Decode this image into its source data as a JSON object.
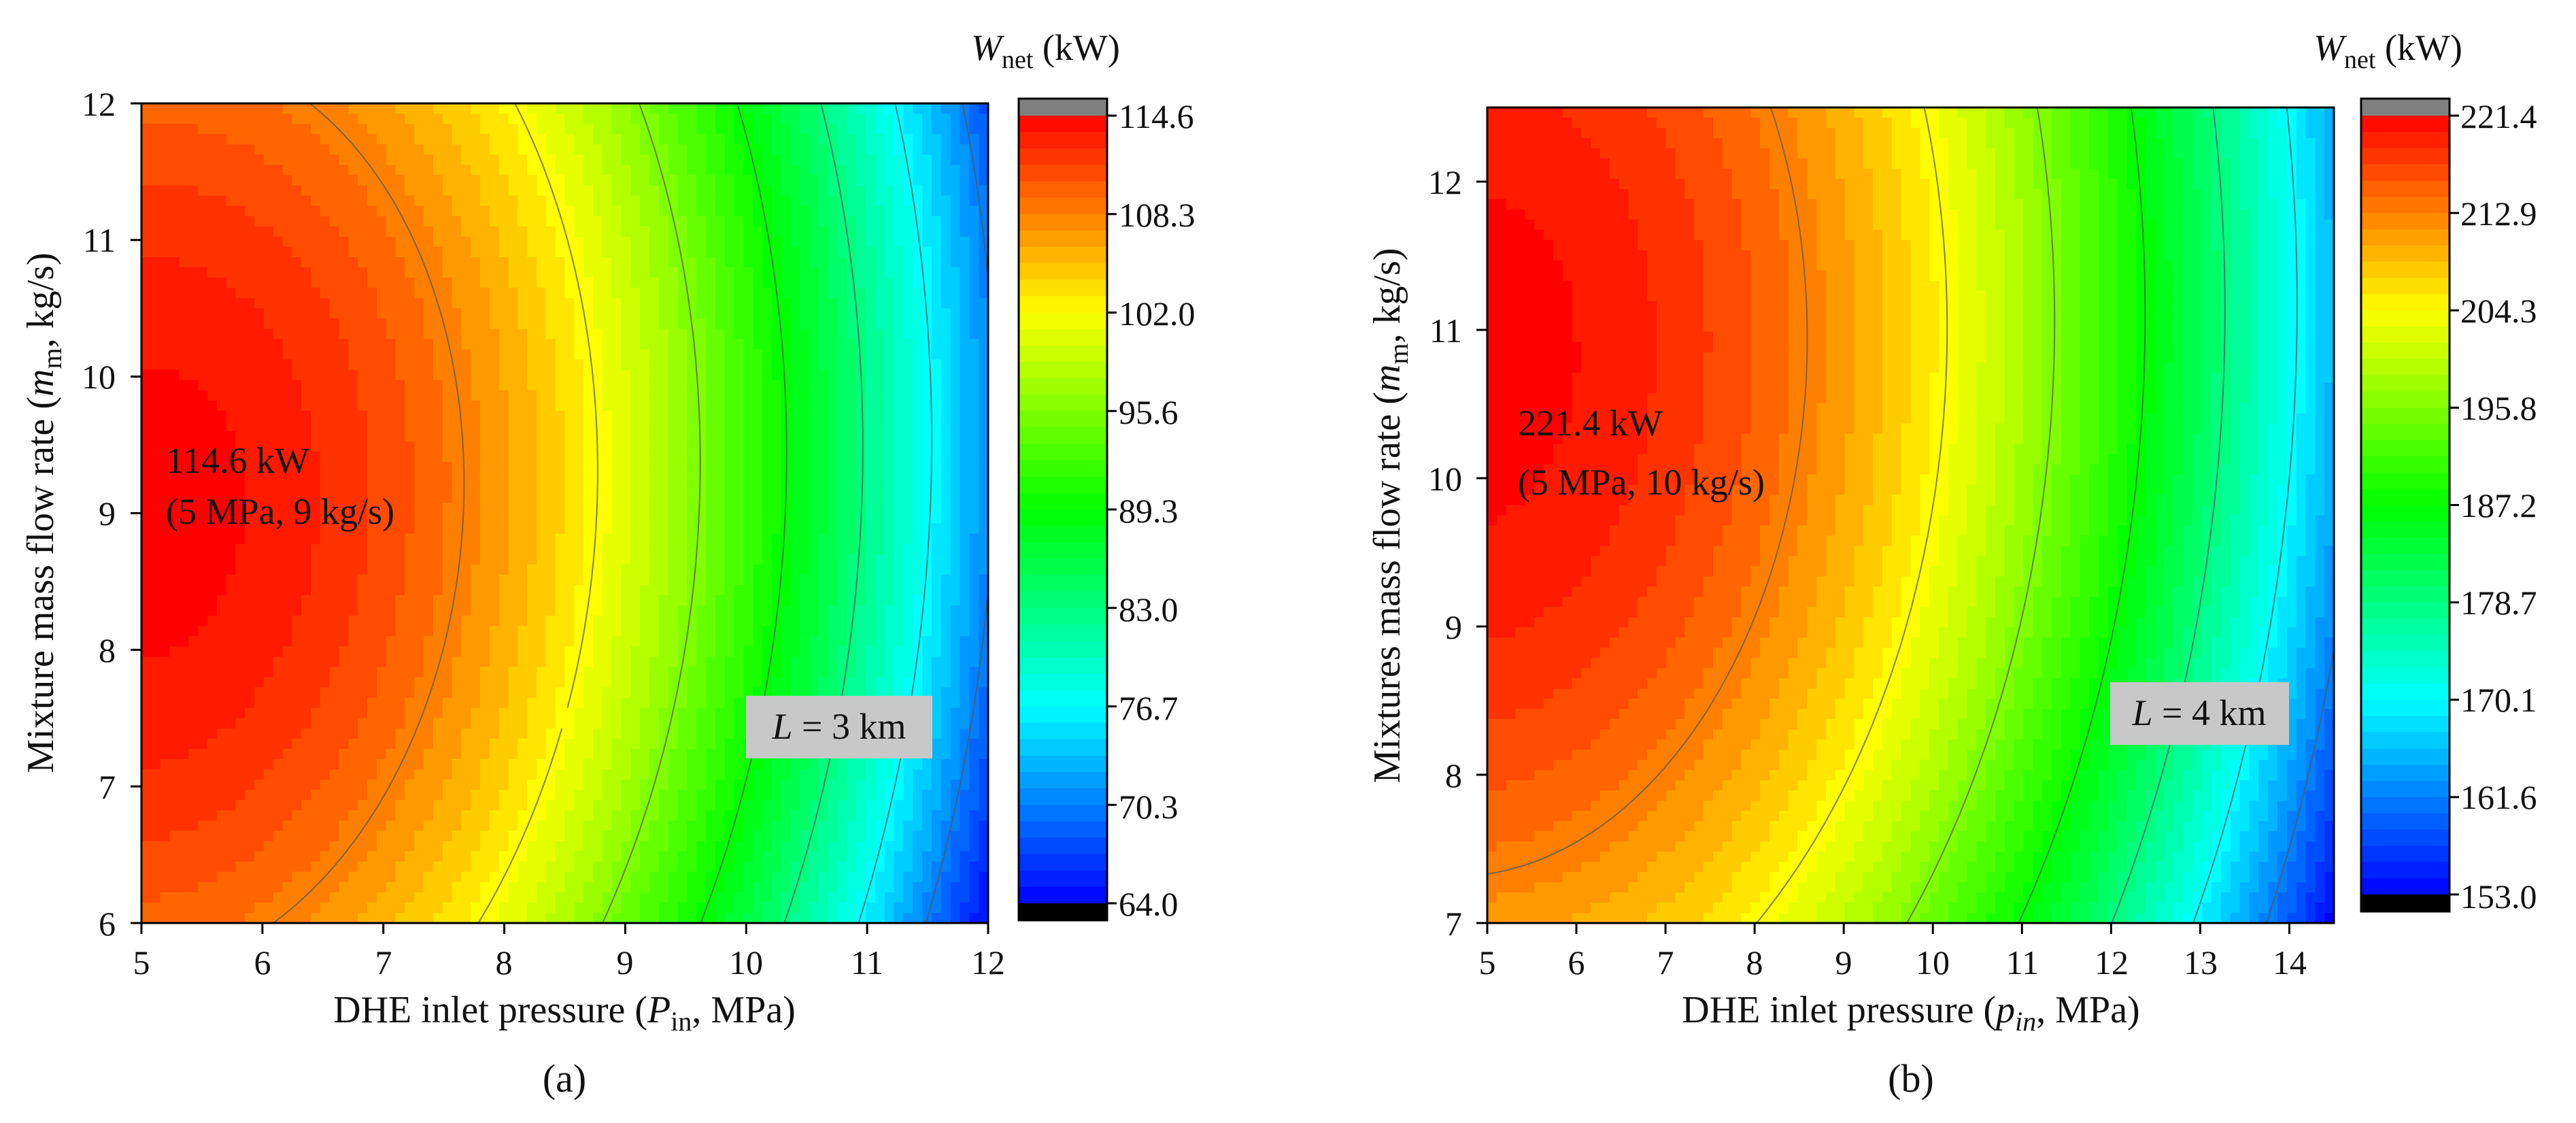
{
  "chart_data": [
    {
      "type": "heatmap",
      "panel_label": "(a)",
      "xlabel": {
        "pre": "DHE inlet pressure (",
        "var": "P",
        "sub": "in",
        "post": ", MPa)"
      },
      "ylabel": {
        "pre": "Mixture mass flow rate (",
        "var": "m",
        "sub": "m",
        "post": ", kg/s)"
      },
      "xlim": [
        5,
        12
      ],
      "ylim": [
        6,
        12
      ],
      "x_ticks": [
        "5",
        "6",
        "7",
        "8",
        "9",
        "10",
        "11",
        "12"
      ],
      "y_ticks": [
        "6",
        "7",
        "8",
        "9",
        "10",
        "11",
        "12"
      ],
      "colorbar_title": {
        "var": "W",
        "sub": "net",
        "unit": " (kW)"
      },
      "colorbar_ticks": [
        "114.6",
        "108.3",
        "102.0",
        "95.6",
        "89.3",
        "83.0",
        "76.7",
        "70.3",
        "64.0"
      ],
      "zlim": [
        64.0,
        114.6
      ],
      "peak": {
        "x": 5,
        "y": 9,
        "value": 114.6
      },
      "annotation": {
        "line1": "114.6 kW",
        "line2": "(5 MPa, 9 kg/s)"
      },
      "length_label": {
        "var": "L",
        "text": " = 3 km"
      },
      "model": {
        "a": 2.2,
        "b": 1.0,
        "x0": 5,
        "y0": 9,
        "cx": 0.0,
        "cy": 0.19
      }
    },
    {
      "type": "heatmap",
      "panel_label": "(b)",
      "xlabel": {
        "pre": "DHE inlet pressure (",
        "var": "p",
        "sub": "in",
        "post": ", MPa)"
      },
      "ylabel": {
        "pre": "Mixtures mass flow rate (",
        "var": "m",
        "sub": "m",
        "post": ", kg/s)"
      },
      "xlim": [
        5,
        14.5
      ],
      "ylim": [
        7,
        12.5
      ],
      "x_ticks": [
        "5",
        "6",
        "7",
        "8",
        "9",
        "10",
        "11",
        "12",
        "13",
        "14"
      ],
      "y_ticks": [
        "7",
        "8",
        "9",
        "10",
        "11",
        "12"
      ],
      "colorbar_title": {
        "var": "W",
        "sub": "net",
        "unit": " (kW)"
      },
      "colorbar_ticks": [
        "221.4",
        "212.9",
        "204.3",
        "195.8",
        "187.2",
        "178.7",
        "170.1",
        "161.6",
        "153.0"
      ],
      "zlim": [
        153.0,
        221.4
      ],
      "peak": {
        "x": 5,
        "y": 10,
        "value": 221.4
      },
      "annotation": {
        "line1": "221.4 kW",
        "line2": "(5 MPa, 10 kg/s)"
      },
      "length_label": {
        "var": "L",
        "text": " = 4 km"
      },
      "model": {
        "a": 2.5,
        "b": 1.0,
        "x0": 5,
        "y0": 10.8,
        "cx": 0.11,
        "cy": 0.14
      }
    }
  ],
  "colors": {
    "colormap": [
      "#0000ff",
      "#00ffff",
      "#00ff00",
      "#ffff00",
      "#ff0000"
    ],
    "over": "#808080",
    "under": "#000000",
    "contour_line": "#555555",
    "label_box": "#c8c8c8"
  }
}
